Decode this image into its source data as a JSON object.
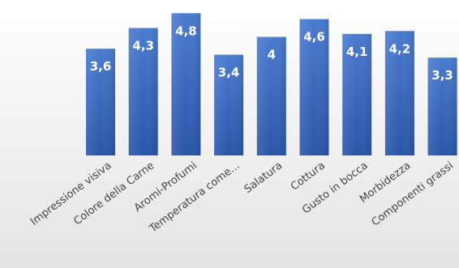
{
  "chart_data": {
    "type": "bar",
    "categories": [
      "Impressione visiva",
      "Colore della Carne",
      "Aromi-Profumi",
      "Temperatura come...",
      "Salatura",
      "Cottura",
      "Gusto in bocca",
      "Morbidezza",
      "Componenti grassi"
    ],
    "values": [
      3.6,
      4.3,
      4.8,
      3.4,
      4,
      4.6,
      4.1,
      4.2,
      3.3
    ],
    "value_labels": [
      "3,6",
      "4,3",
      "4,8",
      "3,4",
      "4",
      "4,6",
      "4,1",
      "4,2",
      "3,3"
    ],
    "ylim": [
      0,
      5
    ],
    "grid": false,
    "legend": "none",
    "colors": {
      "bar_top": "#4a7bd0",
      "bar_bottom": "#2a55a8",
      "label": "#ffffff",
      "category_text": "#444444"
    }
  }
}
